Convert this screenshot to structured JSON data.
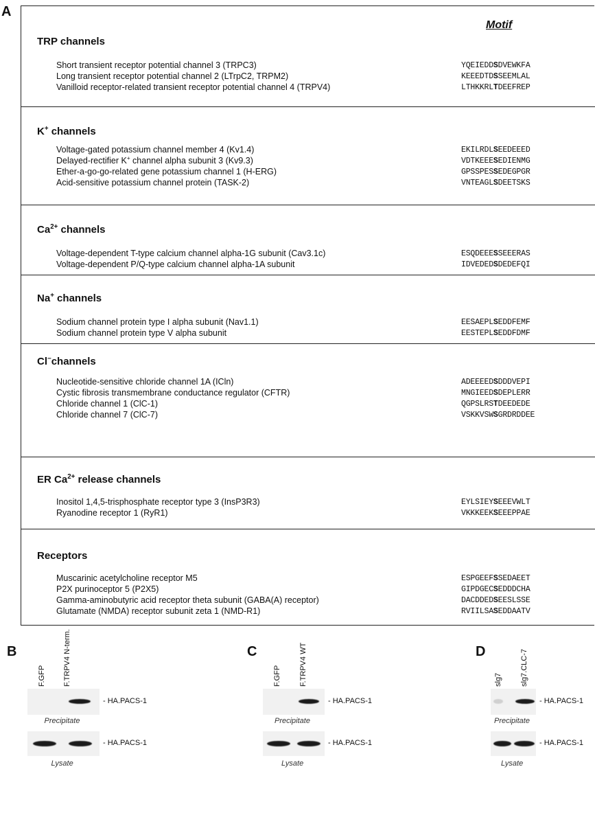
{
  "panel_a": {
    "letter": "A",
    "motif_header": "Motif",
    "sections": [
      {
        "title": [
          "TRP channels"
        ],
        "entries": [
          {
            "name": "Short transient receptor potential channel 3 (TRPC3)",
            "motif": {
              "pre": "YQEIEDD",
              "key": "S",
              "post": "DVEWKFA"
            }
          },
          {
            "name": "Long transient receptor potential channel 2 (LTrpC2, TRPM2)",
            "motif": {
              "pre": "KEEEDTD",
              "key": "S",
              "post": "SEEMLAL"
            }
          },
          {
            "name": "Vanilloid receptor-related transient receptor potential channel 4 (TRPV4)",
            "motif": {
              "pre": "LTHKKRL",
              "key": "T",
              "post": "DEEFREP"
            }
          }
        ]
      },
      {
        "title": [
          "K",
          "+",
          " channels"
        ],
        "entries": [
          {
            "name": "Voltage-gated potassium channel member 4 (Kv1.4)",
            "motif": {
              "pre": "EKILRDL",
              "key": "S",
              "post": "EEDEEED"
            }
          },
          {
            "name": [
              "Delayed-rectifier K",
              "+",
              " channel alpha subunit 3 (Kv9.3)"
            ],
            "motif": {
              "pre": "VDTKEEE",
              "key": "S",
              "post": "EDIENMG"
            }
          },
          {
            "name": "Ether-a-go-go-related gene potassium channel 1 (H-ERG)",
            "motif": {
              "pre": "GPSSPES",
              "key": "S",
              "post": "EDEGPGR"
            }
          },
          {
            "name": "Acid-sensitive potassium channel protein (TASK-2)",
            "motif": {
              "pre": "VNTEAGL",
              "key": "S",
              "post": "DEETSKS"
            }
          }
        ]
      },
      {
        "title": [
          "Ca",
          "2+",
          " channels"
        ],
        "entries": [
          {
            "name": "Voltage-dependent T-type calcium channel alpha-1G subunit  (Cav3.1c)",
            "motif": {
              "pre": "ESQDEEE",
              "key": "S",
              "post": "SEEERAS"
            }
          },
          {
            "name": "Voltage-dependent P/Q-type calcium channel alpha-1A subunit",
            "motif": {
              "pre": "IDVEDED",
              "key": "S",
              "post": "DEDEFQI"
            }
          }
        ]
      },
      {
        "title": [
          "Na",
          "+",
          " channels"
        ],
        "entries": [
          {
            "name": "Sodium channel protein type I alpha subunit  (Nav1.1)",
            "motif": {
              "pre": "EESAEPL",
              "key": "S",
              "post": "EDDFEMF"
            }
          },
          {
            "name": "Sodium channel protein type V alpha subunit",
            "motif": {
              "pre": "EESTEPL",
              "key": "S",
              "post": "EDDFDMF"
            }
          }
        ]
      },
      {
        "title": [
          "Cl",
          "−",
          "channels"
        ],
        "entries": [
          {
            "name": "Nucleotide-sensitive chloride channel 1A (ICln)",
            "motif": {
              "pre": "ADEEEED",
              "key": "S",
              "post": "DDDVEPI"
            }
          },
          {
            "name": "Cystic fibrosis transmembrane conductance regulator (CFTR)",
            "motif": {
              "pre": "MNGIEED",
              "key": "S",
              "post": "DEPLERR"
            }
          },
          {
            "name": "Chloride channel 1 (ClC-1)",
            "motif": {
              "pre": "QGPSLRS",
              "key": "T",
              "post": "DEEDEDE"
            }
          },
          {
            "name": "Chloride channel 7 (ClC-7)",
            "motif": {
              "pre": "VSKKVSW",
              "key": "S",
              "post": "GRDRDDEE"
            }
          }
        ]
      },
      {
        "title": [
          "ER Ca",
          "2+",
          " release channels"
        ],
        "entries": [
          {
            "name": "Inositol 1,4,5-trisphosphate receptor type 3 (InsP3R3)",
            "motif": {
              "pre": "EYLSIEY",
              "key": "S",
              "post": "EEEVWLT"
            }
          },
          {
            "name": "Ryanodine receptor 1  (RyR1)",
            "motif": {
              "pre": "VKKKEEK",
              "key": "S",
              "post": "EEEPPAE"
            }
          }
        ]
      },
      {
        "title": [
          "Receptors"
        ],
        "entries": [
          {
            "name": "Muscarinic acetylcholine receptor M5",
            "motif": {
              "pre": "ESPGEEF",
              "key": "S",
              "post": "SEDAEET"
            }
          },
          {
            "name": "P2X purinoceptor 5 (P2X5)",
            "motif": {
              "pre": "GIPDGEC",
              "key": "S",
              "post": "EDDDCHA"
            }
          },
          {
            "name": "Gamma-aminobutyric acid receptor theta subunit (GABA(A) receptor)",
            "motif": {
              "pre": "DACDDED",
              "key": "S",
              "post": "EESLSSE"
            }
          },
          {
            "name": "Glutamate (NMDA) receptor subunit zeta 1 (NMD-R1)",
            "motif": {
              "pre": "RVIILSA",
              "key": "S",
              "post": "EDDAATV"
            }
          }
        ]
      }
    ]
  },
  "blots": [
    {
      "letter": "B",
      "lanes": [
        "F.GFP",
        "F.TRPV4 N-term."
      ],
      "precipitate_label": "- HA.PACS-1",
      "precipitate_caption": "Precipitate",
      "lysate_label": "- HA.PACS-1",
      "lysate_caption": "Lysate"
    },
    {
      "letter": "C",
      "lanes": [
        "F.GFP",
        "F.TRPV4 WT"
      ],
      "precipitate_label": "- HA.PACS-1",
      "precipitate_caption": "Precipitate",
      "lysate_label": "- HA.PACS-1",
      "lysate_caption": "Lysate"
    },
    {
      "letter": "D",
      "lanes": [
        "slg7",
        "slg7.CLC-7"
      ],
      "precipitate_label": "- HA.PACS-1",
      "precipitate_caption": "Precipitate",
      "lysate_label": "- HA.PACS-1",
      "lysate_caption": "Lysate"
    }
  ]
}
